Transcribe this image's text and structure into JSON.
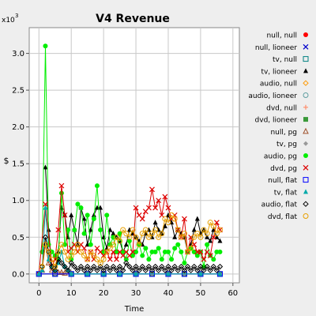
{
  "chart_data": {
    "type": "line",
    "title": "V4 Revenue",
    "xlabel": "Time",
    "ylabel": "$",
    "y_multiplier_label": "x10",
    "y_multiplier_exponent": "3",
    "xlim": [
      -3,
      62
    ],
    "ylim": [
      -0.12,
      3.35
    ],
    "x_ticks": [
      0,
      10,
      20,
      30,
      40,
      50,
      60
    ],
    "x_tick_labels": [
      "0",
      "10",
      "20",
      "30",
      "40",
      "50",
      "60"
    ],
    "y_ticks": [
      0.0,
      0.5,
      1.0,
      1.5,
      2.0,
      2.5,
      3.0
    ],
    "y_tick_labels": [
      "0.0",
      "0.5",
      "1.0",
      "1.5",
      "2.0",
      "2.5",
      "3.0"
    ],
    "grid": true,
    "legend_position": "right",
    "series": [
      {
        "name": "null, null",
        "color": "#ff0000",
        "marker": "circle-filled",
        "x": [
          0,
          5,
          10,
          15,
          20,
          25,
          30,
          35,
          40,
          45,
          50,
          56
        ],
        "y": [
          0,
          0,
          0,
          0,
          0,
          0,
          0,
          0,
          0,
          0,
          0,
          0
        ]
      },
      {
        "name": "null, lioneer",
        "color": "#0000cc",
        "marker": "x",
        "x": [
          0,
          5,
          10,
          15,
          20,
          25,
          30,
          35,
          40,
          45,
          50,
          56
        ],
        "y": [
          0,
          0,
          0,
          0,
          0,
          0,
          0,
          0,
          0,
          0,
          0,
          0
        ]
      },
      {
        "name": "tv, null",
        "color": "#008080",
        "marker": "square-open",
        "x": [
          0,
          5,
          10,
          15,
          20,
          25,
          30,
          35,
          40,
          45,
          50,
          56
        ],
        "y": [
          0,
          0,
          0,
          0,
          0,
          0,
          0,
          0,
          0,
          0,
          0,
          0
        ]
      },
      {
        "name": "tv, lioneer",
        "color": "#000000",
        "marker": "triangle-filled",
        "x": [
          2,
          3,
          4,
          5,
          6,
          7,
          8,
          9,
          10,
          11,
          12,
          13,
          14,
          15,
          16,
          17,
          18,
          19,
          20,
          21,
          22,
          23,
          24,
          25,
          26,
          27,
          28,
          29,
          30,
          31,
          32,
          33,
          34,
          35,
          36,
          37,
          38,
          39,
          40,
          41,
          42,
          43,
          44,
          45,
          46,
          47,
          48,
          49,
          50,
          51,
          52,
          53,
          54,
          55,
          56
        ],
        "y": [
          1.45,
          0.6,
          0.1,
          0.05,
          0.3,
          0.9,
          0.8,
          0.5,
          0.8,
          0.6,
          0.4,
          0.9,
          0.75,
          0.4,
          0.6,
          0.8,
          0.9,
          0.9,
          0.5,
          0.35,
          0.6,
          0.55,
          0.5,
          0.45,
          0.3,
          0.4,
          0.6,
          0.55,
          0.5,
          0.45,
          0.4,
          0.55,
          0.6,
          0.5,
          0.7,
          0.6,
          0.55,
          0.65,
          0.8,
          0.7,
          0.5,
          0.6,
          0.55,
          0.5,
          0.3,
          0.4,
          0.6,
          0.75,
          0.55,
          0.6,
          0.5,
          0.45,
          0.6,
          0.5,
          0.45
        ]
      },
      {
        "name": "audio, null",
        "color": "#ff9900",
        "marker": "diamond-open",
        "x": [
          0,
          5,
          10,
          15,
          20,
          25,
          30,
          35,
          40,
          45,
          50,
          56
        ],
        "y": [
          0,
          0,
          0,
          0,
          0,
          0,
          0,
          0,
          0,
          0,
          0,
          0
        ]
      },
      {
        "name": "audio, lioneer",
        "color": "#5f9ea0",
        "marker": "circle-open",
        "x": [
          0,
          5,
          10,
          15,
          20,
          25,
          30,
          35,
          40,
          45,
          50,
          56
        ],
        "y": [
          0,
          0,
          0,
          0,
          0,
          0,
          0,
          0,
          0,
          0,
          0,
          0
        ]
      },
      {
        "name": "dvd, null",
        "color": "#ff8c69",
        "marker": "plus",
        "x": [
          0,
          5,
          10,
          15,
          20,
          25,
          30,
          35,
          40,
          45,
          50,
          56
        ],
        "y": [
          0,
          0,
          0,
          0,
          0,
          0,
          0,
          0,
          0,
          0,
          0,
          0
        ]
      },
      {
        "name": "dvd, lioneer",
        "color": "#3a9a3a",
        "marker": "square-filled",
        "x": [
          0,
          5,
          10,
          15,
          20,
          25,
          30,
          35,
          40,
          45,
          50,
          56
        ],
        "y": [
          0,
          0,
          0,
          0,
          0,
          0,
          0,
          0,
          0,
          0,
          0,
          0
        ]
      },
      {
        "name": "null, pg",
        "color": "#a0522d",
        "marker": "triangle-open",
        "x": [
          0,
          1,
          2,
          3,
          4,
          5,
          6,
          7,
          8,
          10,
          15,
          20,
          25,
          30,
          40,
          50,
          56
        ],
        "y": [
          0,
          0.05,
          0.4,
          0.15,
          0.05,
          0.03,
          0.02,
          0.02,
          0.01,
          0,
          0,
          0,
          0,
          0,
          0,
          0,
          0
        ]
      },
      {
        "name": "tv, pg",
        "color": "#999999",
        "marker": "diamond-filled",
        "x": [
          0,
          5,
          10,
          15,
          20,
          25,
          30,
          35,
          40,
          45,
          50,
          56
        ],
        "y": [
          0,
          0,
          0,
          0,
          0,
          0,
          0,
          0,
          0,
          0,
          0,
          0
        ]
      },
      {
        "name": "audio, pg",
        "color": "#00ee00",
        "marker": "circle-filled",
        "x": [
          1,
          2,
          3,
          4,
          5,
          6,
          7,
          8,
          9,
          10,
          11,
          12,
          13,
          14,
          15,
          16,
          17,
          18,
          19,
          20,
          21,
          22,
          23,
          24,
          25,
          26,
          27,
          28,
          29,
          30,
          31,
          32,
          33,
          34,
          35,
          36,
          37,
          38,
          39,
          40,
          41,
          42,
          43,
          44,
          45,
          46,
          47,
          48,
          49,
          50,
          51,
          52,
          53,
          54,
          55,
          56
        ],
        "y": [
          0.3,
          3.1,
          0.4,
          0.3,
          0.25,
          0.2,
          1.1,
          0.4,
          0.6,
          0.2,
          0.6,
          0.95,
          0.9,
          0.55,
          0.8,
          0.4,
          0.75,
          1.2,
          0.6,
          0.3,
          0.8,
          0.4,
          0.5,
          0.3,
          0.55,
          0.3,
          0.2,
          0.45,
          0.25,
          0.3,
          0.4,
          0.25,
          0.35,
          0.2,
          0.3,
          0.3,
          0.35,
          0.2,
          0.3,
          0.3,
          0.2,
          0.35,
          0.4,
          0.3,
          0.15,
          0.3,
          0.35,
          0.3,
          0.25,
          0.3,
          0.1,
          0.4,
          0.25,
          0.2,
          0.3,
          0.3
        ]
      },
      {
        "name": "dvd, pg",
        "color": "#dd0000",
        "marker": "x",
        "x": [
          0,
          2,
          4,
          5,
          6,
          7,
          8,
          9,
          10,
          11,
          12,
          13,
          14,
          15,
          16,
          17,
          18,
          19,
          20,
          21,
          22,
          23,
          24,
          25,
          26,
          27,
          28,
          29,
          30,
          31,
          32,
          33,
          34,
          35,
          36,
          37,
          38,
          39,
          40,
          41,
          42,
          43,
          44,
          45,
          46,
          47,
          48,
          49,
          50,
          51,
          52,
          53,
          54,
          55,
          56
        ],
        "y": [
          0,
          0.95,
          0.1,
          0.2,
          0.6,
          1.2,
          0.8,
          0.3,
          0.35,
          0.4,
          0.3,
          0.4,
          0.35,
          0.2,
          0.3,
          0.2,
          0.35,
          0.3,
          0.25,
          0.3,
          0.2,
          0.3,
          0.2,
          0.3,
          0.25,
          0.3,
          0.25,
          0.3,
          0.9,
          0.8,
          0.75,
          0.85,
          0.9,
          1.15,
          0.9,
          1.0,
          0.8,
          1.05,
          0.9,
          0.75,
          0.8,
          0.6,
          0.5,
          0.75,
          0.3,
          0.5,
          0.4,
          0.3,
          0.3,
          0.2,
          0.3,
          0.25,
          0.5,
          0.7,
          0.6
        ]
      },
      {
        "name": "null, flat",
        "color": "#0000ff",
        "marker": "square-open",
        "x": [
          0,
          5,
          10,
          15,
          20,
          25,
          30,
          35,
          40,
          45,
          50,
          56
        ],
        "y": [
          0,
          0,
          0,
          0,
          0,
          0,
          0,
          0,
          0,
          0,
          0,
          0
        ]
      },
      {
        "name": "tv, flat",
        "color": "#00aaaa",
        "marker": "triangle-filled",
        "x": [
          0,
          1,
          2,
          3,
          4,
          5,
          6,
          7,
          8,
          9,
          10,
          15,
          20,
          25,
          30,
          40,
          50,
          56
        ],
        "y": [
          0,
          0.05,
          0.9,
          0.2,
          0.1,
          0.05,
          0.15,
          0.3,
          0.1,
          0.05,
          0,
          0,
          0,
          0,
          0,
          0,
          0,
          0
        ]
      },
      {
        "name": "audio, flat",
        "color": "#000000",
        "marker": "diamond-open",
        "x": [
          1,
          2,
          3,
          4,
          5,
          6,
          7,
          8,
          9,
          10,
          11,
          12,
          13,
          14,
          15,
          16,
          17,
          18,
          19,
          20,
          21,
          22,
          23,
          24,
          25,
          26,
          27,
          28,
          29,
          30,
          31,
          32,
          33,
          34,
          35,
          36,
          37,
          38,
          39,
          40,
          41,
          42,
          43,
          44,
          45,
          46,
          47,
          48,
          49,
          50,
          51,
          52,
          53,
          54,
          55,
          56
        ],
        "y": [
          0.1,
          0.5,
          0.3,
          0.1,
          0.05,
          0.2,
          0.15,
          0.1,
          0.05,
          0.15,
          0.1,
          0.05,
          0.1,
          0.05,
          0.1,
          0.05,
          0.1,
          0.05,
          0.1,
          0.05,
          0.1,
          0.05,
          0.1,
          0.05,
          0.1,
          0.05,
          0.15,
          0.1,
          0.05,
          0.1,
          0.05,
          0.1,
          0.05,
          0.1,
          0.05,
          0.1,
          0.05,
          0.1,
          0.05,
          0.1,
          0.05,
          0.1,
          0.05,
          0.1,
          0.05,
          0.1,
          0.05,
          0.1,
          0.05,
          0.1,
          0.05,
          0.1,
          0.05,
          0.1,
          0.05,
          0.1
        ]
      },
      {
        "name": "dvd, flat",
        "color": "#e8a000",
        "marker": "circle-open",
        "x": [
          1,
          2,
          3,
          4,
          5,
          6,
          7,
          8,
          9,
          10,
          11,
          12,
          13,
          14,
          15,
          16,
          17,
          18,
          19,
          20,
          21,
          22,
          23,
          24,
          25,
          26,
          27,
          28,
          29,
          30,
          31,
          32,
          33,
          34,
          35,
          36,
          37,
          38,
          39,
          40,
          41,
          42,
          43,
          44,
          45,
          46,
          47,
          48,
          49,
          50,
          51,
          52,
          53,
          54,
          55,
          56
        ],
        "y": [
          0.1,
          0.4,
          0.3,
          0.2,
          0.1,
          0.3,
          0.4,
          0.3,
          0.2,
          0.25,
          0.3,
          0.4,
          0.3,
          0.25,
          0.2,
          0.3,
          0.25,
          0.2,
          0.15,
          0.2,
          0.3,
          0.35,
          0.4,
          0.5,
          0.45,
          0.6,
          0.55,
          0.5,
          0.6,
          0.5,
          0.4,
          0.55,
          0.6,
          0.5,
          0.55,
          0.6,
          0.5,
          0.55,
          0.75,
          0.7,
          0.8,
          0.75,
          0.6,
          0.5,
          0.55,
          0.3,
          0.35,
          0.5,
          0.55,
          0.5,
          0.6,
          0.55,
          0.7,
          0.65,
          0.55,
          0.6
        ]
      }
    ]
  }
}
